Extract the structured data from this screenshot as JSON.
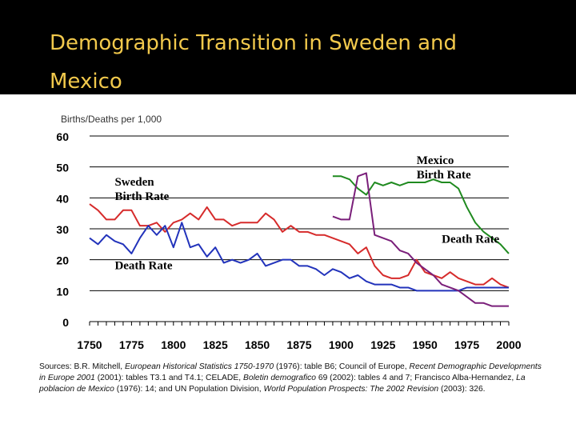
{
  "title": "Demographic Transition in Sweden and Mexico",
  "chart_data": {
    "type": "line",
    "title": "Demographic Transition in Sweden and Mexico",
    "ylabel": "Births/Deaths per 1,000",
    "xlabel": "",
    "xlim": [
      1750,
      2000
    ],
    "ylim": [
      0,
      60
    ],
    "yticks": [
      0,
      10,
      20,
      30,
      40,
      50,
      60
    ],
    "xticks": [
      1750,
      1775,
      1800,
      1825,
      1850,
      1875,
      1900,
      1925,
      1950,
      1975,
      2000
    ],
    "grid": "horizontal",
    "series": [
      {
        "name": "Sweden Birth Rate",
        "color": "#d62b2b",
        "x": [
          1750,
          1755,
          1760,
          1765,
          1770,
          1775,
          1780,
          1785,
          1790,
          1795,
          1800,
          1805,
          1810,
          1815,
          1820,
          1825,
          1830,
          1835,
          1840,
          1845,
          1850,
          1855,
          1860,
          1865,
          1870,
          1875,
          1880,
          1885,
          1890,
          1895,
          1900,
          1905,
          1910,
          1915,
          1920,
          1925,
          1930,
          1935,
          1940,
          1945,
          1950,
          1955,
          1960,
          1965,
          1970,
          1975,
          1980,
          1985,
          1990,
          1995,
          2000
        ],
        "y": [
          38,
          36,
          33,
          33,
          36,
          36,
          31,
          31,
          32,
          29,
          32,
          33,
          35,
          33,
          37,
          33,
          33,
          31,
          32,
          32,
          32,
          35,
          33,
          29,
          31,
          29,
          29,
          28,
          28,
          27,
          26,
          25,
          22,
          24,
          18,
          15,
          14,
          14,
          15,
          20,
          16,
          15,
          14,
          16,
          14,
          13,
          12,
          12,
          14,
          12,
          11
        ]
      },
      {
        "name": "Sweden Death Rate",
        "color": "#2233bb",
        "x": [
          1750,
          1755,
          1760,
          1765,
          1770,
          1775,
          1780,
          1785,
          1790,
          1795,
          1800,
          1805,
          1810,
          1815,
          1820,
          1825,
          1830,
          1835,
          1840,
          1845,
          1850,
          1855,
          1860,
          1865,
          1870,
          1875,
          1880,
          1885,
          1890,
          1895,
          1900,
          1905,
          1910,
          1915,
          1920,
          1925,
          1930,
          1935,
          1940,
          1945,
          1950,
          1955,
          1960,
          1965,
          1970,
          1975,
          1980,
          1985,
          1990,
          1995,
          2000
        ],
        "y": [
          27,
          25,
          28,
          26,
          25,
          22,
          27,
          31,
          28,
          31,
          24,
          32,
          24,
          25,
          21,
          24,
          19,
          20,
          19,
          20,
          22,
          18,
          19,
          20,
          20,
          18,
          18,
          17,
          15,
          17,
          16,
          14,
          15,
          13,
          12,
          12,
          12,
          11,
          11,
          10,
          10,
          10,
          10,
          10,
          10,
          11,
          11,
          11,
          11,
          11,
          11
        ]
      },
      {
        "name": "Mexico Birth Rate",
        "color": "#1f8a1f",
        "x": [
          1895,
          1900,
          1905,
          1910,
          1915,
          1920,
          1925,
          1930,
          1935,
          1940,
          1945,
          1950,
          1955,
          1960,
          1965,
          1970,
          1975,
          1980,
          1985,
          1990,
          1995,
          2000
        ],
        "y": [
          47,
          47,
          46,
          43,
          41,
          45,
          44,
          45,
          44,
          45,
          45,
          45,
          46,
          45,
          45,
          43,
          37,
          32,
          29,
          27,
          25,
          22
        ]
      },
      {
        "name": "Mexico Death Rate",
        "color": "#7a1f7a",
        "x": [
          1895,
          1900,
          1905,
          1910,
          1915,
          1920,
          1925,
          1930,
          1935,
          1940,
          1945,
          1950,
          1955,
          1960,
          1965,
          1970,
          1975,
          1980,
          1985,
          1990,
          1995,
          2000
        ],
        "y": [
          34,
          33,
          33,
          47,
          48,
          28,
          27,
          26,
          23,
          22,
          19,
          17,
          15,
          12,
          11,
          10,
          8,
          6,
          6,
          5,
          5,
          5
        ]
      }
    ],
    "annotations": [
      {
        "text": "Sweden Birth Rate",
        "at": [
          1765,
          44
        ]
      },
      {
        "text": "Death Rate",
        "at": [
          1765,
          17
        ]
      },
      {
        "text": "Mexico Birth Rate",
        "at": [
          1945,
          51
        ]
      },
      {
        "text": "Death Rate",
        "at": [
          1960,
          25.5
        ]
      }
    ]
  },
  "sources": {
    "label": "Sources: B.R. Mitchell,",
    "t1": "European Historical Statistics 1750-1970",
    "s1": "(1976): table B6; Council of Europe,",
    "t2": "Recent Demographic Developments in Europe 2001",
    "s2": "(2001): tables T3.1 and T4.1; CELADE,",
    "t3": "Boletin demografico",
    "s3": "69 (2002): tables 4 and 7; Francisco Alba-Hernandez,",
    "t4": "La poblacion de Mexico",
    "s4": "(1976): 14; and UN Population Division,",
    "t5": "World Population Prospects: The 2002 Revision",
    "s5": "(2003): 326."
  }
}
